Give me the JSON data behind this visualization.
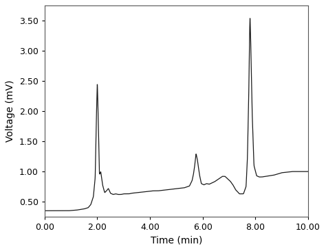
{
  "title": "",
  "xlabel": "Time (min)",
  "ylabel": "Voltage (mV)",
  "xlim": [
    0.0,
    10.0
  ],
  "ylim": [
    0.25,
    3.75
  ],
  "xticks": [
    0.0,
    2.0,
    4.0,
    6.0,
    8.0,
    10.0
  ],
  "yticks": [
    0.5,
    1.0,
    1.5,
    2.0,
    2.5,
    3.0,
    3.5
  ],
  "line_color": "#1a1a1a",
  "line_width": 0.9,
  "background_color": "#ffffff",
  "keypoints_x": [
    0.0,
    0.3,
    0.6,
    0.9,
    1.2,
    1.5,
    1.65,
    1.75,
    1.85,
    1.92,
    1.96,
    2.0,
    2.04,
    2.08,
    2.13,
    2.2,
    2.28,
    2.35,
    2.42,
    2.5,
    2.6,
    2.7,
    2.8,
    2.9,
    3.0,
    3.1,
    3.2,
    3.3,
    3.5,
    3.7,
    3.9,
    4.1,
    4.3,
    4.5,
    4.7,
    4.9,
    5.1,
    5.3,
    5.5,
    5.6,
    5.65,
    5.7,
    5.75,
    5.8,
    5.88,
    5.95,
    6.05,
    6.15,
    6.25,
    6.35,
    6.45,
    6.55,
    6.65,
    6.75,
    6.85,
    6.95,
    7.05,
    7.15,
    7.25,
    7.4,
    7.55,
    7.65,
    7.7,
    7.75,
    7.78,
    7.8,
    7.83,
    7.88,
    7.95,
    8.05,
    8.15,
    8.25,
    8.4,
    8.55,
    8.7,
    8.85,
    9.0,
    9.2,
    9.4,
    9.6,
    9.8,
    10.0
  ],
  "keypoints_y": [
    0.35,
    0.35,
    0.35,
    0.35,
    0.36,
    0.38,
    0.4,
    0.45,
    0.58,
    0.9,
    1.8,
    2.5,
    1.8,
    0.95,
    1.0,
    0.78,
    0.65,
    0.68,
    0.72,
    0.64,
    0.62,
    0.63,
    0.62,
    0.62,
    0.63,
    0.63,
    0.63,
    0.64,
    0.65,
    0.66,
    0.67,
    0.68,
    0.68,
    0.69,
    0.7,
    0.71,
    0.72,
    0.73,
    0.76,
    0.85,
    0.95,
    1.1,
    1.3,
    1.2,
    0.95,
    0.8,
    0.78,
    0.8,
    0.79,
    0.81,
    0.83,
    0.86,
    0.89,
    0.92,
    0.92,
    0.88,
    0.84,
    0.78,
    0.7,
    0.63,
    0.63,
    0.75,
    1.2,
    2.2,
    3.2,
    3.6,
    3.1,
    2.0,
    1.1,
    0.93,
    0.91,
    0.91,
    0.92,
    0.93,
    0.94,
    0.96,
    0.98,
    0.99,
    1.0,
    1.0,
    1.0,
    1.0
  ]
}
